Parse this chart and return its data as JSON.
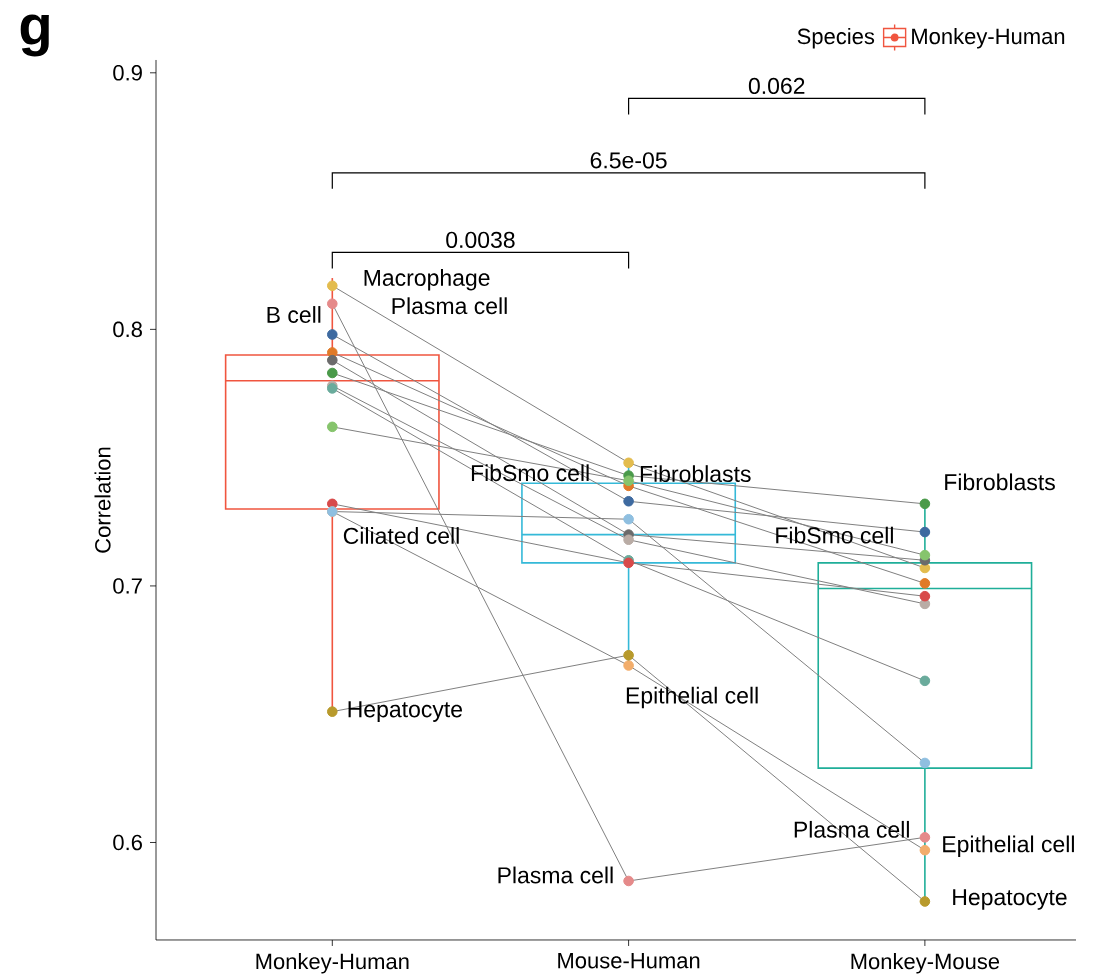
{
  "chart_data": {
    "type": "box",
    "title": "g",
    "ylabel": "Correlation",
    "legend_title": "Species",
    "legend": "top right",
    "marker": "circle",
    "categories": [
      "Monkey-Human",
      "Mouse-Human",
      "Monkey-Mouse"
    ],
    "ylim": [
      0.562,
      0.905
    ],
    "yticks": [
      0.6,
      0.7,
      0.8,
      0.9
    ],
    "series": [
      {
        "name": "Monkey-Human",
        "color": "#f0553f",
        "boxes": [
          {
            "low": 0.651,
            "q1": 0.73,
            "median": 0.78,
            "q3": 0.79,
            "high": 0.82
          },
          null,
          null
        ]
      },
      {
        "color": "#35b9d8",
        "boxes": [
          null,
          {
            "low": 0.67,
            "q1": 0.709,
            "median": 0.72,
            "q3": 0.74,
            "high": 0.747
          },
          null
        ]
      },
      {
        "color": "#1fae99",
        "boxes": [
          null,
          null,
          {
            "low": 0.576,
            "q1": 0.629,
            "median": 0.699,
            "q3": 0.709,
            "high": 0.733
          }
        ]
      },
      {
        "type": "line",
        "color": "#808080",
        "colors": [
          "#e3bc4e",
          "#e3bc4e",
          "#e3bc4e"
        ],
        "values": [
          0.817,
          0.748,
          0.707
        ]
      },
      {
        "type": "line",
        "color": "#808080",
        "colors": [
          "#e58a8a",
          "#e58a8a",
          "#e58a8a"
        ],
        "values": [
          0.81,
          0.585,
          0.602
        ]
      },
      {
        "type": "line",
        "color": "#808080",
        "colors": [
          "#3e6aa0",
          "#3e6aa0",
          "#3e6aa0"
        ],
        "values": [
          0.798,
          0.733,
          0.721
        ]
      },
      {
        "type": "line",
        "color": "#808080",
        "colors": [
          "#e07a28",
          "#e07a28",
          "#e07a28"
        ],
        "values": [
          0.791,
          0.739,
          0.701
        ]
      },
      {
        "type": "line",
        "color": "#808080",
        "colors": [
          "#6b6b6b",
          "#6b6b6b",
          "#6b6b6b"
        ],
        "values": [
          0.788,
          0.72,
          0.71
        ]
      },
      {
        "type": "line",
        "color": "#808080",
        "colors": [
          "#4a9a4a",
          "#4a9a4a",
          "#4a9a4a"
        ],
        "values": [
          0.783,
          0.743,
          0.732
        ]
      },
      {
        "type": "line",
        "color": "#808080",
        "colors": [
          "#b9aca5",
          "#b9aca5",
          "#b9aca5"
        ],
        "values": [
          0.778,
          0.718,
          0.693
        ]
      },
      {
        "type": "line",
        "color": "#808080",
        "colors": [
          "#6aab9c",
          "#6aab9c",
          "#6aab9c"
        ],
        "values": [
          0.777,
          0.71,
          0.663
        ]
      },
      {
        "type": "line",
        "color": "#808080",
        "colors": [
          "#86c46c",
          "#86c46c",
          "#86c46c"
        ],
        "values": [
          0.762,
          0.741,
          0.712
        ]
      },
      {
        "type": "line",
        "color": "#808080",
        "colors": [
          "#d84a4a",
          "#d84a4a",
          "#d84a4a"
        ],
        "values": [
          0.732,
          0.709,
          0.696
        ]
      },
      {
        "type": "line",
        "color": "#808080",
        "colors": [
          "#f2ad6b",
          "#f2ad6b",
          "#f2ad6b"
        ],
        "values": [
          0.729,
          0.669,
          0.597
        ]
      },
      {
        "type": "line",
        "color": "#808080",
        "colors": [
          "#8fbfe0",
          "#8fbfe0",
          "#8fbfe0"
        ],
        "values": [
          0.729,
          0.726,
          0.631
        ]
      },
      {
        "type": "line",
        "color": "#808080",
        "colors": [
          "#b89a2c",
          "#b89a2c",
          "#b89a2c"
        ],
        "values": [
          0.651,
          0.673,
          0.577
        ]
      }
    ],
    "annotations": [
      "0.0038",
      "6.5e-05",
      "0.062",
      {
        "text": "Macrophage",
        "x": "Monkey-Human",
        "y": 0.817
      },
      {
        "text": "Plasma cell",
        "x": "Monkey-Human",
        "y": 0.81
      },
      {
        "text": "B cell",
        "x": "Monkey-Human",
        "y": 0.798
      },
      {
        "text": "Ciliated cell",
        "x": "Monkey-Human",
        "y": 0.729
      },
      {
        "text": "Hepatocyte",
        "x": "Monkey-Human",
        "y": 0.651
      },
      {
        "text": "FibSmo cell",
        "x": "Mouse-Human",
        "y": 0.741
      },
      {
        "text": "Fibroblasts",
        "x": "Mouse-Human",
        "y": 0.743
      },
      {
        "text": "Epithelial cell",
        "x": "Mouse-Human",
        "y": 0.669
      },
      {
        "text": "Plasma cell",
        "x": "Mouse-Human",
        "y": 0.585
      },
      {
        "text": "Fibroblasts",
        "x": "Monkey-Mouse",
        "y": 0.732
      },
      {
        "text": "FibSmo cell",
        "x": "Monkey-Mouse",
        "y": 0.712
      },
      {
        "text": "Plasma cell",
        "x": "Monkey-Mouse",
        "y": 0.602
      },
      {
        "text": "Epithelial cell",
        "x": "Monkey-Mouse",
        "y": 0.597
      },
      {
        "text": "Hepatocyte",
        "x": "Monkey-Mouse",
        "y": 0.577
      }
    ]
  }
}
